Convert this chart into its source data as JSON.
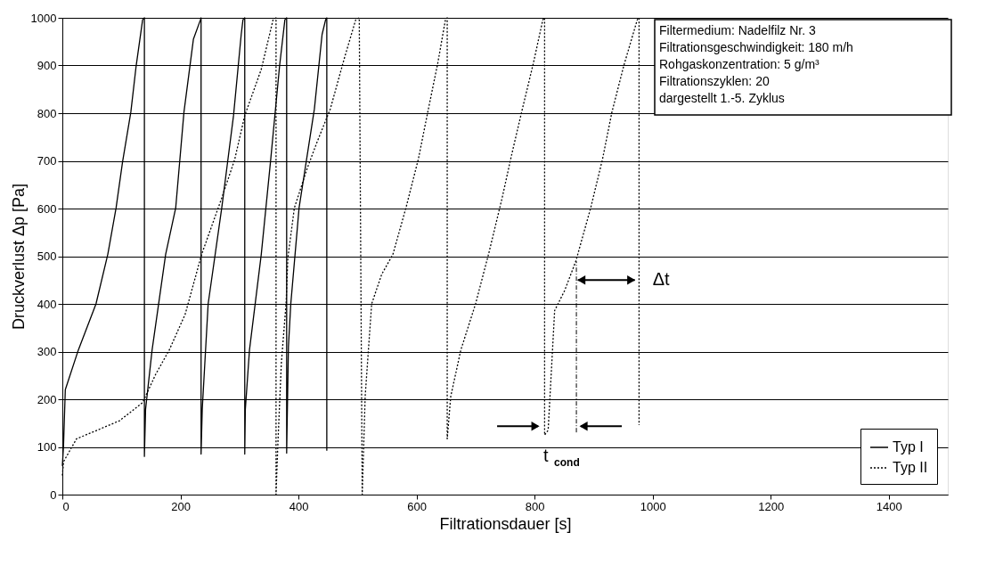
{
  "chart_data": {
    "type": "line",
    "xlabel": "Filtrationsdauer [s]",
    "ylabel": "Druckverlust Δp [Pa]",
    "xlim": [
      0,
      1500
    ],
    "xticks": [
      0,
      200,
      400,
      600,
      800,
      {
        "value": 1000,
        "label": "1000"
      },
      {
        "value": 1200,
        "label": "1200"
      },
      {
        "value": 1400,
        "label": "1400"
      }
    ],
    "ylim": [
      0,
      1000
    ],
    "yticks": [
      0,
      100,
      200,
      300,
      400,
      500,
      600,
      700,
      800,
      900,
      {
        "value": 1000,
        "label": "1000"
      }
    ],
    "grid": "y",
    "legend": "bottom right",
    "series": [
      {
        "name": "Typ I",
        "color": "#000000",
        "line_style": "solid",
        "x": [
          0,
          2,
          5,
          27,
          57,
          77,
          91,
          102,
          116,
          125,
          136,
          139,
          139,
          141,
          152,
          175,
          192,
          206,
          222,
          234,
          235,
          235,
          237,
          247,
          270,
          290,
          303,
          306,
          309,
          309,
          310,
          317,
          337,
          353,
          368,
          377,
          380,
          380,
          383,
          387,
          401,
          427,
          440,
          446,
          448,
          448
        ],
        "values": [
          60,
          103,
          220,
          303,
          400,
          504,
          601,
          698,
          802,
          899,
          996,
          1000,
          80,
          179,
          303,
          504,
          601,
          802,
          955,
          996,
          1000,
          85,
          179,
          400,
          601,
          795,
          965,
          996,
          1000,
          85,
          179,
          303,
          504,
          703,
          899,
          996,
          1000,
          87,
          310,
          400,
          601,
          809,
          965,
          996,
          1000,
          92
        ]
      },
      {
        "name": "Typ II",
        "color": "#000000",
        "line_style": "dotted",
        "x": [
          0,
          2,
          24,
          57,
          97,
          136,
          158,
          181,
          208,
          236,
          270,
          292,
          309,
          337,
          357,
          362,
          362,
          365,
          371,
          379,
          382,
          393,
          415,
          432,
          454,
          477,
          497,
          503,
          508,
          513,
          524,
          541,
          560,
          582,
          603,
          619,
          636,
          649,
          652,
          652,
          658,
          675,
          700,
          722,
          745,
          761,
          778,
          798,
          814,
          817,
          817,
          823,
          834,
          851,
          870,
          895,
          915,
          931,
          951,
          974,
          977,
          977
        ],
        "values": [
          40,
          69,
          117,
          134,
          155,
          193,
          252,
          303,
          378,
          504,
          622,
          703,
          795,
          892,
          996,
          1000,
          0,
          103,
          276,
          400,
          496,
          601,
          685,
          741,
          809,
          912,
          996,
          1000,
          0,
          206,
          400,
          462,
          504,
          601,
          703,
          802,
          905,
          996,
          1000,
          117,
          206,
          303,
          400,
          504,
          622,
          712,
          802,
          905,
          996,
          1000,
          125,
          135,
          386,
          428,
          490,
          601,
          703,
          802,
          899,
          996,
          1000,
          146
        ]
      }
    ],
    "annotations": [
      "Filtermedium: Nadelfilz Nr. 3",
      "Filtrationsgeschwindigkeit: 180 m/h",
      "Rohgaskonzentration: 5 g/m³",
      "Filtrationszyklen: 20",
      "dargestellt 1.-5. Zyklus",
      "Δt",
      "t$_{cond}$"
    ]
  }
}
